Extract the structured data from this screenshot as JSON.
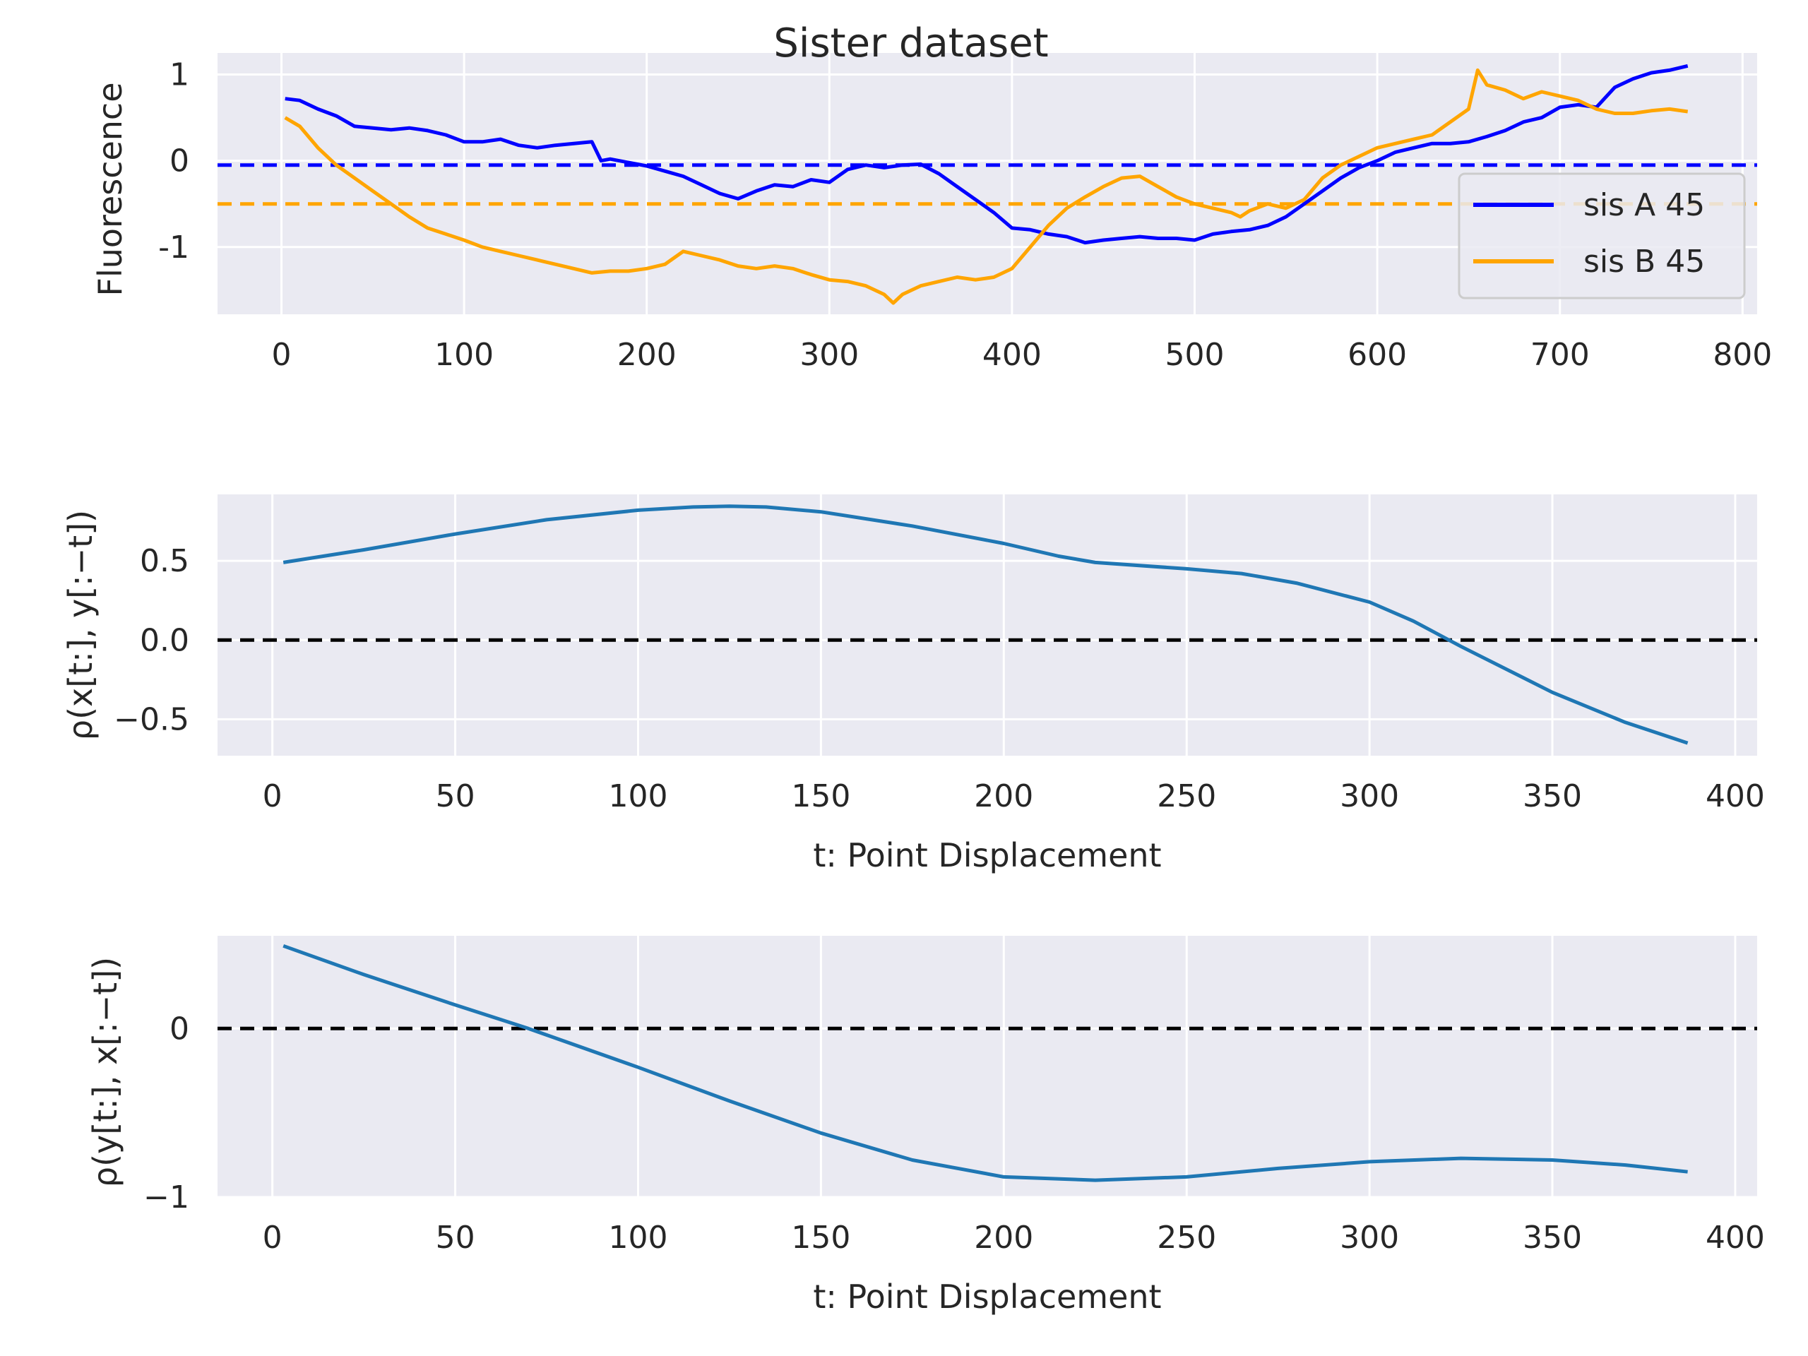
{
  "chart_data": [
    {
      "type": "line",
      "title": "Sister dataset",
      "xlabel": "",
      "ylabel": "Fluorescence",
      "xlim": [
        -35,
        808
      ],
      "ylim": [
        -1.78,
        1.25
      ],
      "xticks": [
        0,
        100,
        200,
        300,
        400,
        500,
        600,
        700,
        800
      ],
      "yticks": [
        1,
        0,
        -1
      ],
      "grid": true,
      "legend": "right",
      "series": [
        {
          "name": "sis A 45",
          "color": "#0000ff",
          "x": [
            2,
            10,
            20,
            30,
            40,
            50,
            60,
            70,
            80,
            90,
            100,
            110,
            120,
            130,
            140,
            150,
            160,
            170,
            175,
            180,
            190,
            200,
            210,
            220,
            230,
            240,
            250,
            260,
            270,
            280,
            290,
            300,
            310,
            320,
            330,
            340,
            350,
            360,
            370,
            380,
            390,
            400,
            410,
            420,
            430,
            440,
            450,
            460,
            470,
            480,
            490,
            500,
            510,
            520,
            530,
            540,
            550,
            560,
            570,
            580,
            590,
            600,
            610,
            620,
            630,
            640,
            650,
            660,
            670,
            680,
            690,
            700,
            710,
            720,
            730,
            740,
            750,
            760,
            770
          ],
          "y": [
            0.72,
            0.7,
            0.6,
            0.52,
            0.4,
            0.38,
            0.36,
            0.38,
            0.35,
            0.3,
            0.22,
            0.22,
            0.25,
            0.18,
            0.15,
            0.18,
            0.2,
            0.22,
            0.0,
            0.02,
            -0.02,
            -0.06,
            -0.12,
            -0.18,
            -0.28,
            -0.38,
            -0.44,
            -0.35,
            -0.28,
            -0.3,
            -0.22,
            -0.25,
            -0.1,
            -0.05,
            -0.08,
            -0.05,
            -0.04,
            -0.15,
            -0.3,
            -0.45,
            -0.6,
            -0.78,
            -0.8,
            -0.85,
            -0.88,
            -0.95,
            -0.92,
            -0.9,
            -0.88,
            -0.9,
            -0.9,
            -0.92,
            -0.85,
            -0.82,
            -0.8,
            -0.75,
            -0.65,
            -0.5,
            -0.35,
            -0.2,
            -0.08,
            0.0,
            0.1,
            0.15,
            0.2,
            0.2,
            0.22,
            0.28,
            0.35,
            0.45,
            0.5,
            0.62,
            0.65,
            0.62,
            0.85,
            0.95,
            1.02,
            1.05,
            1.1
          ]
        },
        {
          "name": "sis B 45",
          "color": "#ffa500",
          "x": [
            2,
            10,
            20,
            30,
            40,
            50,
            60,
            70,
            80,
            90,
            100,
            110,
            120,
            130,
            140,
            150,
            160,
            170,
            180,
            190,
            200,
            210,
            220,
            230,
            240,
            250,
            260,
            270,
            280,
            290,
            300,
            310,
            320,
            330,
            335,
            340,
            350,
            360,
            370,
            380,
            390,
            400,
            410,
            420,
            430,
            440,
            450,
            460,
            470,
            480,
            490,
            500,
            510,
            520,
            525,
            530,
            540,
            550,
            560,
            570,
            580,
            590,
            600,
            610,
            620,
            630,
            640,
            650,
            655,
            660,
            670,
            680,
            690,
            700,
            710,
            720,
            730,
            740,
            750,
            760,
            770
          ],
          "y": [
            0.5,
            0.4,
            0.15,
            -0.05,
            -0.2,
            -0.35,
            -0.5,
            -0.65,
            -0.78,
            -0.85,
            -0.92,
            -1.0,
            -1.05,
            -1.1,
            -1.15,
            -1.2,
            -1.25,
            -1.3,
            -1.28,
            -1.28,
            -1.25,
            -1.2,
            -1.05,
            -1.1,
            -1.15,
            -1.22,
            -1.25,
            -1.22,
            -1.25,
            -1.32,
            -1.38,
            -1.4,
            -1.45,
            -1.55,
            -1.65,
            -1.55,
            -1.45,
            -1.4,
            -1.35,
            -1.38,
            -1.35,
            -1.25,
            -1.0,
            -0.75,
            -0.55,
            -0.42,
            -0.3,
            -0.2,
            -0.18,
            -0.3,
            -0.42,
            -0.5,
            -0.55,
            -0.6,
            -0.65,
            -0.58,
            -0.5,
            -0.55,
            -0.45,
            -0.2,
            -0.05,
            0.05,
            0.15,
            0.2,
            0.25,
            0.3,
            0.45,
            0.6,
            1.05,
            0.88,
            0.82,
            0.72,
            0.8,
            0.75,
            0.7,
            0.6,
            0.55,
            0.55,
            0.58,
            0.6,
            0.57
          ]
        },
        {
          "name": "",
          "color": "#0000ff",
          "style": "dashed",
          "x": [
            -35,
            808
          ],
          "y": [
            -0.05,
            -0.05
          ]
        },
        {
          "name": "",
          "color": "#ffa500",
          "style": "dashed",
          "x": [
            -35,
            808
          ],
          "y": [
            -0.5,
            -0.5
          ]
        }
      ]
    },
    {
      "type": "line",
      "title": "",
      "xlabel": "t: Point Displacement",
      "ylabel": "ρ(x[t:], y[:−t])",
      "xlim": [
        -15,
        406
      ],
      "ylim": [
        -0.73,
        0.92
      ],
      "xticks": [
        0,
        50,
        100,
        150,
        200,
        250,
        300,
        350,
        400
      ],
      "yticks": [
        0.5,
        0.0,
        -0.5
      ],
      "ytick_labels": [
        "0.5",
        "0.0",
        "−0.5"
      ],
      "grid": true,
      "series": [
        {
          "name": "",
          "color": "#1f77b4",
          "x": [
            3,
            25,
            50,
            75,
            100,
            115,
            125,
            135,
            150,
            175,
            200,
            215,
            225,
            250,
            265,
            280,
            300,
            312,
            325,
            350,
            370,
            387
          ],
          "y": [
            0.49,
            0.57,
            0.67,
            0.76,
            0.82,
            0.84,
            0.845,
            0.84,
            0.81,
            0.72,
            0.61,
            0.53,
            0.49,
            0.45,
            0.42,
            0.36,
            0.24,
            0.12,
            -0.04,
            -0.33,
            -0.52,
            -0.65
          ]
        },
        {
          "name": "",
          "color": "#000000",
          "style": "dashed",
          "x": [
            -15,
            406
          ],
          "y": [
            0,
            0
          ]
        }
      ]
    },
    {
      "type": "line",
      "title": "",
      "xlabel": "t: Point Displacement",
      "ylabel": "ρ(y[t:], x[:−t])",
      "xlim": [
        -15,
        406
      ],
      "ylim": [
        -1.0,
        0.55
      ],
      "xticks": [
        0,
        50,
        100,
        150,
        200,
        250,
        300,
        350,
        400
      ],
      "yticks": [
        0,
        -1
      ],
      "ytick_labels": [
        "0",
        "−1"
      ],
      "grid": true,
      "series": [
        {
          "name": "",
          "color": "#1f77b4",
          "x": [
            3,
            25,
            50,
            70,
            100,
            125,
            150,
            175,
            200,
            225,
            250,
            275,
            300,
            325,
            350,
            370,
            387
          ],
          "y": [
            0.49,
            0.32,
            0.14,
            0.0,
            -0.23,
            -0.43,
            -0.62,
            -0.78,
            -0.88,
            -0.9,
            -0.88,
            -0.83,
            -0.79,
            -0.77,
            -0.78,
            -0.81,
            -0.85
          ]
        },
        {
          "name": "",
          "color": "#000000",
          "style": "dashed",
          "x": [
            -15,
            406
          ],
          "y": [
            0,
            0
          ]
        }
      ]
    }
  ]
}
